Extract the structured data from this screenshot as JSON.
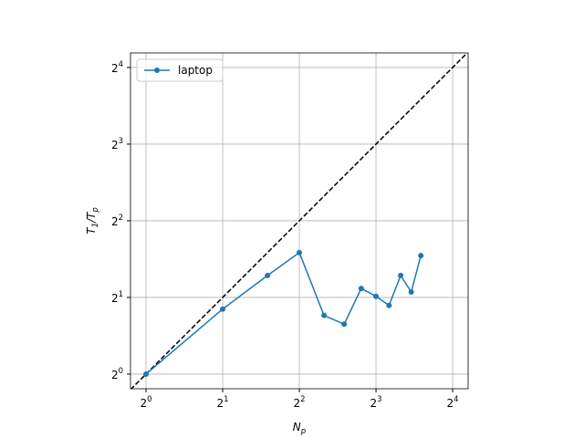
{
  "chart_data": {
    "type": "line",
    "xlabel": "N_p",
    "ylabel": "T_1/T_p",
    "x": [
      1,
      2,
      3,
      4,
      5,
      6,
      7,
      8,
      9,
      10,
      11,
      12
    ],
    "series": [
      {
        "name": "laptop",
        "color": "#1f77b4",
        "marker": "o",
        "values": [
          1,
          1.8,
          2.44,
          3.0,
          1.7,
          1.57,
          2.17,
          2.02,
          1.86,
          2.44,
          2.1,
          2.92
        ]
      }
    ],
    "identity_line": {
      "color": "#000000",
      "dashed": true
    },
    "xscale": "log2",
    "yscale": "log2",
    "xlim": [
      0.869,
      18.4
    ],
    "ylim": [
      0.876,
      18.25
    ],
    "xticks": [
      {
        "value": 1,
        "label": "2^0"
      },
      {
        "value": 2,
        "label": "2^1"
      },
      {
        "value": 4,
        "label": "2^2"
      },
      {
        "value": 8,
        "label": "2^3"
      },
      {
        "value": 16,
        "label": "2^4"
      }
    ],
    "yticks": [
      {
        "value": 1,
        "label": "2^0"
      },
      {
        "value": 2,
        "label": "2^1"
      },
      {
        "value": 4,
        "label": "2^2"
      },
      {
        "value": 8,
        "label": "2^3"
      },
      {
        "value": 16,
        "label": "2^4"
      }
    ],
    "grid": true,
    "legend": "upper left"
  }
}
